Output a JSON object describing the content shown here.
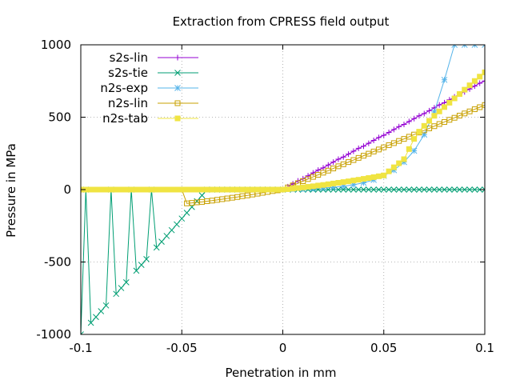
{
  "chart_data": {
    "type": "line",
    "title": "Extraction from CPRESS field output",
    "xlabel": "Penetration in mm",
    "ylabel": "Pressure in MPa",
    "xlim": [
      -0.1,
      0.1
    ],
    "ylim": [
      -1000,
      1000
    ],
    "xticks": [
      -0.1,
      -0.05,
      0,
      0.05,
      0.1
    ],
    "xtick_labels": [
      "-0.1",
      "-0.05",
      "0",
      "0.05",
      "0.1"
    ],
    "yticks": [
      -1000,
      -500,
      0,
      500,
      1000
    ],
    "ytick_labels": [
      "-1000",
      "-500",
      "0",
      "500",
      "1000"
    ],
    "grid": true,
    "legend_position": "top-left",
    "series": [
      {
        "name": "s2s-lin",
        "color": "#9400d3",
        "marker": "plus",
        "line": true,
        "x": [
          -0.1,
          0,
          0.0025,
          0.005,
          0.0075,
          0.01,
          0.0125,
          0.015,
          0.0175,
          0.02,
          0.0225,
          0.025,
          0.0275,
          0.03,
          0.0325,
          0.035,
          0.0375,
          0.04,
          0.0425,
          0.045,
          0.0475,
          0.05,
          0.0525,
          0.055,
          0.0575,
          0.06,
          0.0625,
          0.065,
          0.0675,
          0.07,
          0.0725,
          0.075,
          0.0775,
          0.08,
          0.0825,
          0.085,
          0.0875,
          0.09,
          0.0925,
          0.095,
          0.0975,
          0.1
        ],
        "y": [
          0,
          0,
          20,
          40,
          60,
          75,
          95,
          115,
          135,
          150,
          170,
          190,
          210,
          225,
          245,
          265,
          285,
          300,
          320,
          340,
          360,
          375,
          395,
          415,
          435,
          450,
          470,
          490,
          510,
          525,
          545,
          565,
          585,
          600,
          620,
          640,
          660,
          675,
          695,
          715,
          735,
          750
        ]
      },
      {
        "name": "s2s-tie",
        "color": "#009e73",
        "marker": "cross",
        "line": true,
        "x": [
          -0.1,
          -0.0975,
          -0.095,
          -0.0925,
          -0.09,
          -0.0875,
          -0.085,
          -0.0825,
          -0.08,
          -0.0775,
          -0.075,
          -0.0725,
          -0.07,
          -0.0675,
          -0.065,
          -0.0625,
          -0.06,
          -0.0575,
          -0.055,
          -0.0525,
          -0.05,
          -0.0475,
          -0.045,
          -0.0425,
          -0.04,
          -0.0375,
          -0.035,
          -0.0325,
          -0.03,
          -0.0275,
          -0.025,
          -0.0225,
          -0.02,
          -0.0175,
          -0.015,
          -0.0125,
          -0.01,
          -0.0075,
          -0.005,
          -0.0025,
          0,
          0.0025,
          0.005,
          0.0075,
          0.01,
          0.0125,
          0.015,
          0.0175,
          0.02,
          0.0225,
          0.025,
          0.0275,
          0.03,
          0.0325,
          0.035,
          0.0375,
          0.04,
          0.0425,
          0.045,
          0.0475,
          0.05,
          0.0525,
          0.055,
          0.0575,
          0.06,
          0.0625,
          0.065,
          0.0675,
          0.07,
          0.0725,
          0.075,
          0.0775,
          0.08,
          0.0825,
          0.085,
          0.0875,
          0.09,
          0.0925,
          0.095,
          0.0975,
          0.1
        ],
        "y": [
          -1000,
          0,
          -920,
          -880,
          -840,
          -800,
          0,
          -720,
          -680,
          -640,
          0,
          -560,
          -520,
          -480,
          0,
          -400,
          -360,
          -320,
          -280,
          -240,
          -200,
          -160,
          -120,
          -80,
          -40,
          0,
          0,
          0,
          0,
          0,
          0,
          0,
          0,
          0,
          0,
          0,
          0,
          0,
          0,
          0,
          0,
          0,
          0,
          0,
          0,
          0,
          0,
          0,
          0,
          0,
          0,
          0,
          0,
          0,
          0,
          0,
          0,
          0,
          0,
          0,
          0,
          0,
          0,
          0,
          0,
          0,
          0,
          0,
          0,
          0,
          0,
          0,
          0,
          0,
          0,
          0,
          0,
          0,
          0,
          0,
          0
        ]
      },
      {
        "name": "n2s-exp",
        "color": "#56b4e9",
        "marker": "star",
        "line": true,
        "x": [
          -0.1,
          0,
          0.005,
          0.01,
          0.015,
          0.02,
          0.025,
          0.03,
          0.035,
          0.04,
          0.045,
          0.05,
          0.055,
          0.06,
          0.065,
          0.07,
          0.075,
          0.08,
          0.085,
          0.09,
          0.095,
          0.1
        ],
        "y": [
          0,
          0,
          2,
          4,
          7,
          11,
          16,
          23,
          33,
          47,
          67,
          95,
          134,
          190,
          268,
          380,
          536,
          758,
          1000,
          1000,
          1000,
          1000
        ]
      },
      {
        "name": "n2s-lin",
        "color": "#c8a000",
        "marker": "open-square",
        "line": true,
        "x": [
          -0.1,
          -0.05,
          -0.0475,
          -0.045,
          -0.0425,
          -0.04,
          -0.0375,
          -0.035,
          -0.0325,
          -0.03,
          -0.0275,
          -0.025,
          -0.0225,
          -0.02,
          -0.0175,
          -0.015,
          -0.0125,
          -0.01,
          -0.0075,
          -0.005,
          -0.0025,
          0,
          0.0025,
          0.005,
          0.0075,
          0.01,
          0.0125,
          0.015,
          0.0175,
          0.02,
          0.0225,
          0.025,
          0.0275,
          0.03,
          0.0325,
          0.035,
          0.0375,
          0.04,
          0.0425,
          0.045,
          0.0475,
          0.05,
          0.0525,
          0.055,
          0.0575,
          0.06,
          0.0625,
          0.065,
          0.0675,
          0.07,
          0.0725,
          0.075,
          0.0775,
          0.08,
          0.0825,
          0.085,
          0.0875,
          0.09,
          0.0925,
          0.095,
          0.0975,
          0.1
        ],
        "y": [
          0,
          0,
          -95,
          -92,
          -88,
          -85,
          -80,
          -76,
          -71,
          -66,
          -61,
          -56,
          -51,
          -45,
          -40,
          -34,
          -28,
          -22,
          -16,
          -10,
          -5,
          0,
          15,
          29,
          44,
          58,
          73,
          88,
          102,
          117,
          131,
          146,
          161,
          175,
          190,
          204,
          219,
          234,
          248,
          263,
          277,
          292,
          307,
          321,
          336,
          350,
          365,
          380,
          394,
          409,
          423,
          438,
          453,
          467,
          482,
          496,
          511,
          526,
          540,
          555,
          569,
          584
        ]
      },
      {
        "name": "n2s-tab",
        "color": "#f0e442",
        "marker": "filled-square",
        "line": true,
        "x": [
          -0.1,
          -0.0975,
          -0.095,
          -0.0925,
          -0.09,
          -0.0875,
          -0.085,
          -0.0825,
          -0.08,
          -0.0775,
          -0.075,
          -0.0725,
          -0.07,
          -0.0675,
          -0.065,
          -0.0625,
          -0.06,
          -0.0575,
          -0.055,
          -0.0525,
          -0.05,
          -0.0475,
          -0.045,
          -0.0425,
          -0.04,
          -0.0375,
          -0.035,
          -0.0325,
          -0.03,
          -0.0275,
          -0.025,
          -0.0225,
          -0.02,
          -0.0175,
          -0.015,
          -0.0125,
          -0.01,
          -0.0075,
          -0.005,
          -0.0025,
          0,
          0.0025,
          0.005,
          0.0075,
          0.01,
          0.0125,
          0.015,
          0.0175,
          0.02,
          0.0225,
          0.025,
          0.0275,
          0.03,
          0.0325,
          0.035,
          0.0375,
          0.04,
          0.0425,
          0.045,
          0.0475,
          0.05,
          0.0525,
          0.055,
          0.0575,
          0.06,
          0.0625,
          0.065,
          0.0675,
          0.07,
          0.0725,
          0.075,
          0.0775,
          0.08,
          0.0825,
          0.085,
          0.0875,
          0.09,
          0.0925,
          0.095,
          0.0975,
          0.1
        ],
        "y": [
          0,
          0,
          0,
          0,
          0,
          0,
          0,
          0,
          0,
          0,
          0,
          0,
          0,
          0,
          0,
          0,
          0,
          0,
          0,
          0,
          0,
          0,
          0,
          0,
          0,
          0,
          0,
          0,
          0,
          0,
          0,
          0,
          0,
          0,
          0,
          0,
          0,
          0,
          0,
          0,
          0,
          3,
          7,
          11,
          15,
          19,
          23,
          28,
          32,
          37,
          42,
          47,
          52,
          57,
          63,
          68,
          74,
          80,
          86,
          92,
          98,
          126,
          154,
          182,
          210,
          280,
          350,
          400,
          440,
          475,
          510,
          540,
          570,
          600,
          630,
          660,
          690,
          720,
          750,
          780,
          810
        ]
      }
    ]
  }
}
